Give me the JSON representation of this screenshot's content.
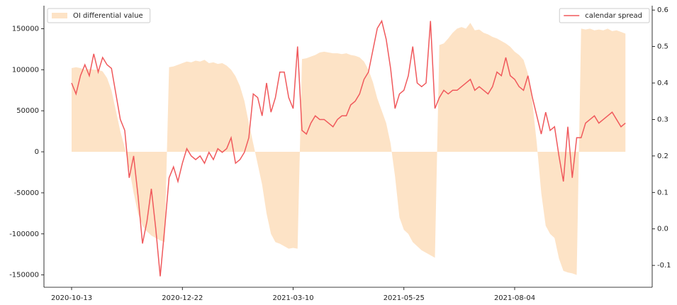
{
  "chart_data": {
    "type": "area-line",
    "categories": [
      "2020-10-13",
      null,
      null,
      null,
      null,
      null,
      null,
      null,
      null,
      null,
      null,
      null,
      null,
      null,
      null,
      null,
      null,
      null,
      null,
      null,
      null,
      null,
      null,
      null,
      null,
      "2020-12-22",
      null,
      null,
      null,
      null,
      null,
      null,
      null,
      null,
      null,
      null,
      null,
      null,
      null,
      null,
      null,
      null,
      null,
      null,
      null,
      null,
      null,
      null,
      null,
      null,
      "2021-03-10",
      null,
      null,
      null,
      null,
      null,
      null,
      null,
      null,
      null,
      null,
      null,
      null,
      null,
      null,
      null,
      null,
      null,
      null,
      null,
      null,
      null,
      null,
      null,
      null,
      "2021-05-25",
      null,
      null,
      null,
      null,
      null,
      null,
      null,
      null,
      null,
      null,
      null,
      null,
      null,
      null,
      null,
      null,
      null,
      null,
      null,
      null,
      null,
      null,
      null,
      null,
      "2021-08-04",
      null,
      null,
      null,
      null,
      null,
      null,
      null,
      null,
      null,
      null,
      null,
      null,
      null,
      null,
      null,
      null,
      null,
      null,
      null,
      null,
      null,
      null,
      null,
      null,
      null
    ],
    "series": [
      {
        "name": "OI differential value",
        "type": "area",
        "color": "#fde3c6",
        "legend": "upper left",
        "values": [
          102000,
          103000,
          102000,
          100000,
          101000,
          100000,
          100000,
          98000,
          90000,
          75000,
          50000,
          25000,
          5000,
          -20000,
          -50000,
          -75000,
          -90000,
          -97000,
          -102000,
          -105000,
          -108000,
          -110000,
          103000,
          104000,
          106000,
          108000,
          110000,
          109000,
          111000,
          110000,
          112000,
          108000,
          109000,
          107000,
          108000,
          105000,
          100000,
          92000,
          80000,
          62000,
          35000,
          10000,
          -15000,
          -40000,
          -75000,
          -100000,
          -110000,
          -112000,
          -115000,
          -118000,
          -117000,
          -118000,
          113000,
          114000,
          116000,
          118000,
          121000,
          122000,
          121000,
          120000,
          120000,
          119000,
          120000,
          118000,
          117000,
          115000,
          110000,
          100000,
          85000,
          65000,
          50000,
          35000,
          10000,
          -30000,
          -80000,
          -95000,
          -100000,
          -110000,
          -115000,
          -120000,
          -123000,
          -126000,
          -129000,
          130000,
          132000,
          138000,
          145000,
          150000,
          152000,
          150000,
          157000,
          148000,
          149000,
          145000,
          143000,
          140000,
          138000,
          135000,
          132000,
          128000,
          122000,
          118000,
          112000,
          95000,
          60000,
          10000,
          -50000,
          -90000,
          -100000,
          -105000,
          -130000,
          -145000,
          -147000,
          -148000,
          -150000,
          150000,
          149000,
          150000,
          148000,
          149000,
          148000,
          150000,
          147000,
          148000,
          146000,
          144000
        ]
      },
      {
        "name": "calendar spread",
        "type": "line",
        "axis": "y2",
        "color": "#f0595c",
        "legend": "upper right",
        "values": [
          0.4,
          0.37,
          0.42,
          0.45,
          0.42,
          0.48,
          0.43,
          0.47,
          0.45,
          0.44,
          0.37,
          0.3,
          0.27,
          0.14,
          0.2,
          0.09,
          -0.04,
          0.02,
          0.11,
          0.0,
          -0.13,
          0.0,
          0.14,
          0.17,
          0.13,
          0.18,
          0.22,
          0.2,
          0.19,
          0.2,
          0.18,
          0.21,
          0.19,
          0.22,
          0.21,
          0.22,
          0.25,
          0.18,
          0.19,
          0.21,
          0.25,
          0.37,
          0.36,
          0.31,
          0.4,
          0.32,
          0.36,
          0.43,
          0.43,
          0.36,
          0.33,
          0.5,
          0.27,
          0.26,
          0.29,
          0.31,
          0.3,
          0.3,
          0.29,
          0.28,
          0.3,
          0.31,
          0.31,
          0.34,
          0.35,
          0.37,
          0.41,
          0.43,
          0.49,
          0.55,
          0.57,
          0.52,
          0.44,
          0.33,
          0.37,
          0.38,
          0.42,
          0.5,
          0.4,
          0.39,
          0.4,
          0.57,
          0.33,
          0.36,
          0.38,
          0.37,
          0.38,
          0.38,
          0.39,
          0.4,
          0.41,
          0.38,
          0.39,
          0.38,
          0.37,
          0.39,
          0.43,
          0.42,
          0.47,
          0.42,
          0.41,
          0.39,
          0.38,
          0.42,
          0.36,
          0.31,
          0.26,
          0.32,
          0.27,
          0.28,
          0.2,
          0.13,
          0.28,
          0.14,
          0.25,
          0.25,
          0.29,
          0.3,
          0.31,
          0.29,
          0.3,
          0.31,
          0.32,
          0.3,
          0.28,
          0.29
        ]
      }
    ],
    "ylim": [
      -165000,
      178000
    ],
    "yticks": [
      -150000,
      -100000,
      -50000,
      0,
      50000,
      100000,
      150000
    ],
    "y2lim": [
      -0.16,
      0.612
    ],
    "y2ticks": [
      -0.1,
      {
        "value": 0,
        "label": "0.0"
      },
      0.1,
      0.2,
      0.3,
      0.4,
      0.5,
      0.6
    ],
    "grid": false
  }
}
